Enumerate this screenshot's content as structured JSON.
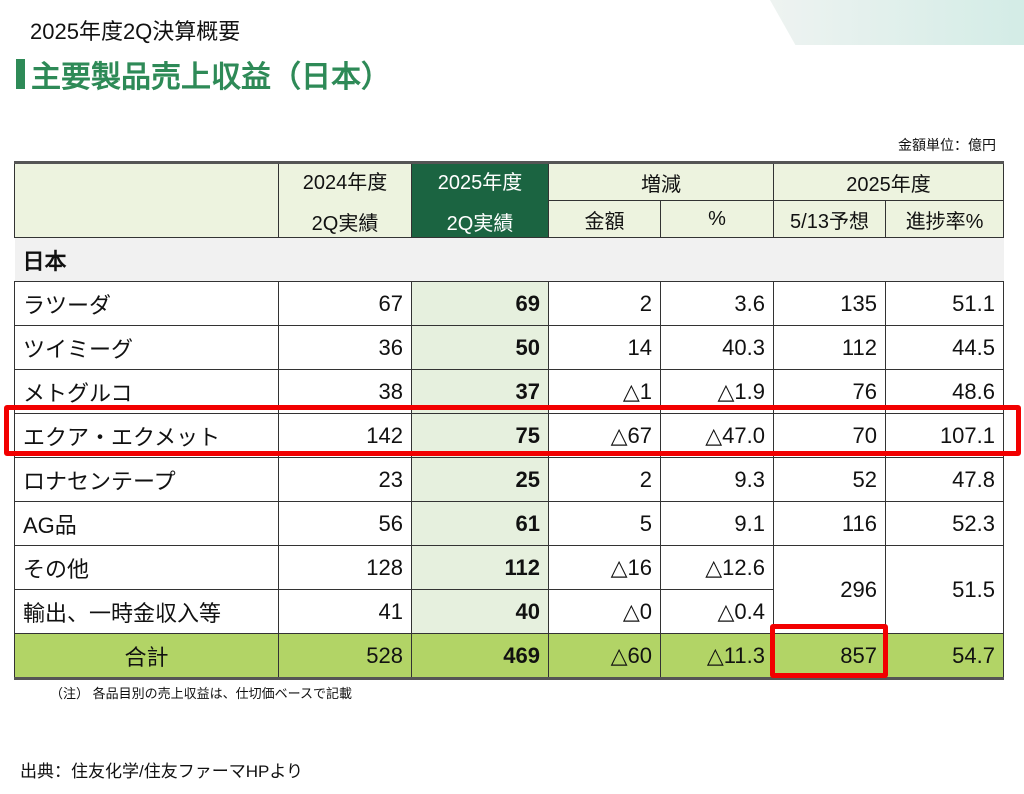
{
  "subtitle": "2025年度2Q決算概要",
  "title": "主要製品売上収益（日本）",
  "unit": "金額単位：億円",
  "headers": {
    "label": "",
    "fy2024": [
      "2024年度",
      "2Q実績"
    ],
    "fy2025": [
      "2025年度",
      "2Q実績"
    ],
    "change": "増減",
    "change_amount": "金額",
    "change_pct": "%",
    "forecast_group": "2025年度",
    "forecast": "5/13予想",
    "progress": "進捗率%"
  },
  "section": "日本",
  "rows": [
    {
      "name": "ラツーダ",
      "fy2024": "67",
      "fy2025": "69",
      "diff": "2",
      "pct": "3.6",
      "forecast": "135",
      "progress": "51.1"
    },
    {
      "name": "ツイミーグ",
      "fy2024": "36",
      "fy2025": "50",
      "diff": "14",
      "pct": "40.3",
      "forecast": "112",
      "progress": "44.5"
    },
    {
      "name": "メトグルコ",
      "fy2024": "38",
      "fy2025": "37",
      "diff": "△1",
      "pct": "△1.9",
      "forecast": "76",
      "progress": "48.6"
    },
    {
      "name": "エクア・エクメット",
      "fy2024": "142",
      "fy2025": "75",
      "diff": "△67",
      "pct": "△47.0",
      "forecast": "70",
      "progress": "107.1"
    },
    {
      "name": "ロナセンテープ",
      "fy2024": "23",
      "fy2025": "25",
      "diff": "2",
      "pct": "9.3",
      "forecast": "52",
      "progress": "47.8"
    },
    {
      "name": "AG品",
      "fy2024": "56",
      "fy2025": "61",
      "diff": "5",
      "pct": "9.1",
      "forecast": "116",
      "progress": "52.3"
    },
    {
      "name": "その他",
      "fy2024": "128",
      "fy2025": "112",
      "diff": "△16",
      "pct": "△12.6",
      "forecast": "296",
      "progress": "51.5"
    },
    {
      "name": "輸出、一時金収入等",
      "fy2024": "41",
      "fy2025": "40",
      "diff": "△0",
      "pct": "△0.4"
    }
  ],
  "total": {
    "name": "合計",
    "fy2024": "528",
    "fy2025": "469",
    "diff": "△60",
    "pct": "△11.3",
    "forecast": "857",
    "progress": "54.7"
  },
  "note": "（注） 各品目別の売上収益は、仕切価ベースで記載",
  "source": "出典：住友化学/住友ファーマHPより",
  "colors": {
    "accent": "#2e8a57",
    "header_dark": "#1b6441",
    "total_bg": "#b2d466",
    "highlight": "#f20000"
  }
}
